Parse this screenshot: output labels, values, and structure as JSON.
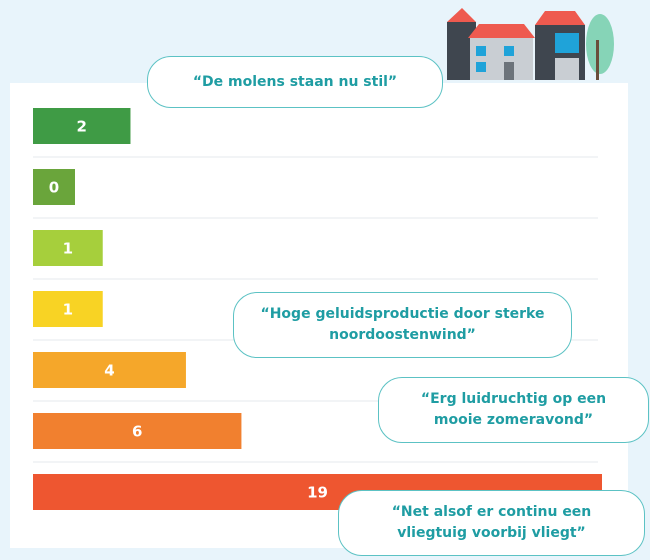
{
  "chart_data": {
    "type": "bar",
    "orientation": "horizontal",
    "values": [
      2,
      0,
      1,
      1,
      4,
      6,
      19
    ],
    "colors": [
      "#3f9b45",
      "#6aa53b",
      "#a6cf3c",
      "#f8d324",
      "#f5a72a",
      "#f1802f",
      "#ee5630"
    ],
    "grid": true,
    "annotations": [
      "“De molens staan nu stil”",
      "“Hoge geluidsproductie door sterke noordoostenwind”",
      "“Erg luidruchtig op een mooie zomeravond”",
      "“Net alsof er continu een vliegtuig voorbij vliegt”"
    ]
  }
}
